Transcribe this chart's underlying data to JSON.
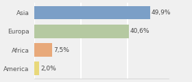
{
  "categories": [
    "Asia",
    "Europa",
    "Africa",
    "America"
  ],
  "values": [
    49.9,
    40.6,
    7.5,
    2.0
  ],
  "labels": [
    "49,9%",
    "40,6%",
    "7,5%",
    "2,0%"
  ],
  "bar_colors": [
    "#7b9fc7",
    "#b5c9a1",
    "#e8a97a",
    "#e8d87a"
  ],
  "background_color": "#f0f0f0",
  "xlim": [
    0,
    58
  ],
  "grid_color": "#ffffff",
  "label_fontsize": 6.5,
  "tick_fontsize": 6.5,
  "bar_height": 0.72
}
